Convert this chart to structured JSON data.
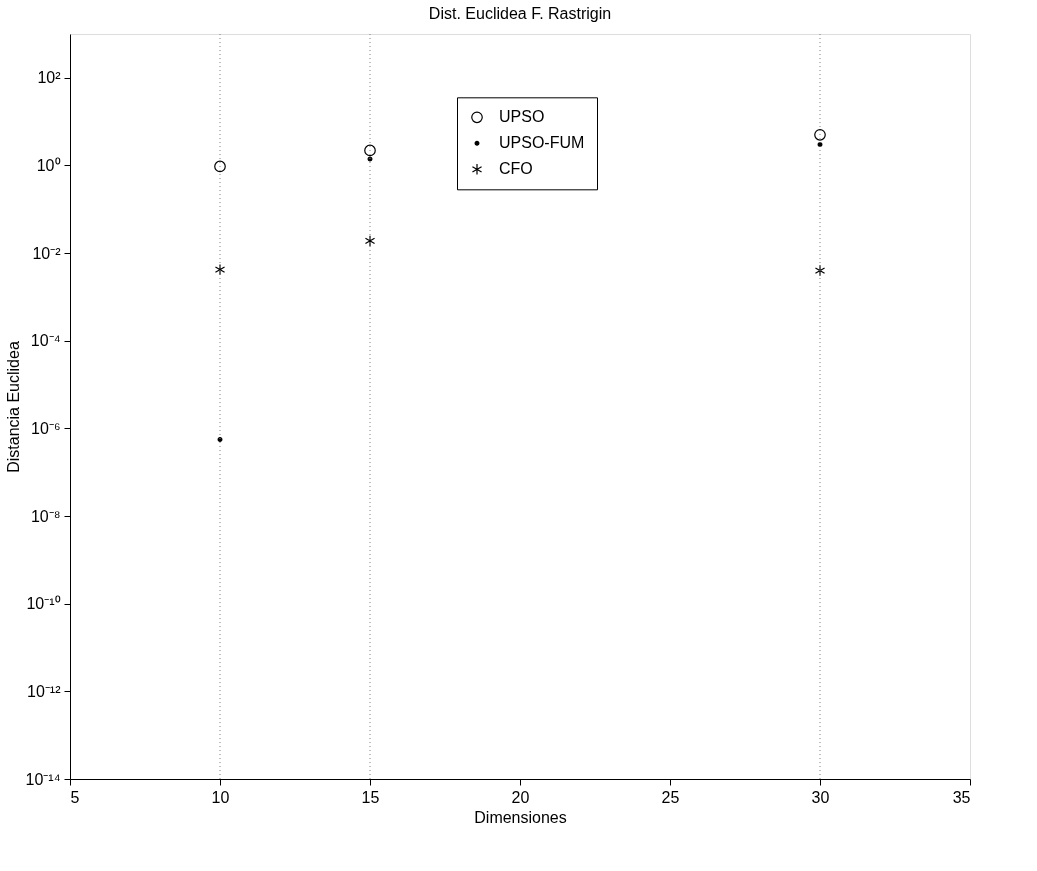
{
  "chart_data": {
    "type": "scatter",
    "title": "Dist. Euclidea F. Rastrigin",
    "xlabel": "Dimensiones",
    "ylabel": "Distancia Euclidea",
    "x": [
      10,
      15,
      30
    ],
    "series": [
      {
        "name": "UPSO",
        "color": "#000000",
        "marker": "circle",
        "values": [
          0.95,
          2.2,
          5
        ]
      },
      {
        "name": "UPSO-FUM",
        "color": "#000000",
        "marker": "circle",
        "values": [
          5.6e-07,
          1.4,
          3
        ]
      },
      {
        "name": "CFO",
        "color": "#000000",
        "marker": "cross",
        "values": [
          0.0042,
          0.019,
          0.004
        ]
      }
    ],
    "log": true,
    "xlim": [
      5,
      35
    ],
    "xticks": [
      5,
      10,
      15,
      20,
      25,
      30,
      35
    ],
    "ylim": [
      1e-14,
      1000
    ],
    "yticks": [
      {
        "value": 1e-14,
        "label": "10⁻¹⁴"
      },
      {
        "value": 1e-12,
        "label": "10⁻¹²"
      },
      {
        "value": 1e-10,
        "label": "10⁻¹⁰"
      },
      {
        "value": 1e-08,
        "label": "10⁻⁸"
      },
      {
        "value": 1e-06,
        "label": "10⁻⁶"
      },
      {
        "value": 0.0001,
        "label": "10⁻⁴"
      },
      {
        "value": 0.01,
        "label": "10⁻²"
      },
      {
        "value": 1,
        "label": "10⁰"
      },
      {
        "value": 100,
        "label": "10²"
      }
    ],
    "ref_lines": [
      {
        "axis": "x",
        "value": 10,
        "color": "#808080",
        "line_style": "dotted"
      },
      {
        "axis": "x",
        "value": 15,
        "color": "#808080",
        "line_style": "dotted"
      },
      {
        "axis": "x",
        "value": 30,
        "color": "#808080",
        "line_style": "dotted"
      }
    ],
    "grid": false,
    "legend": "top"
  }
}
